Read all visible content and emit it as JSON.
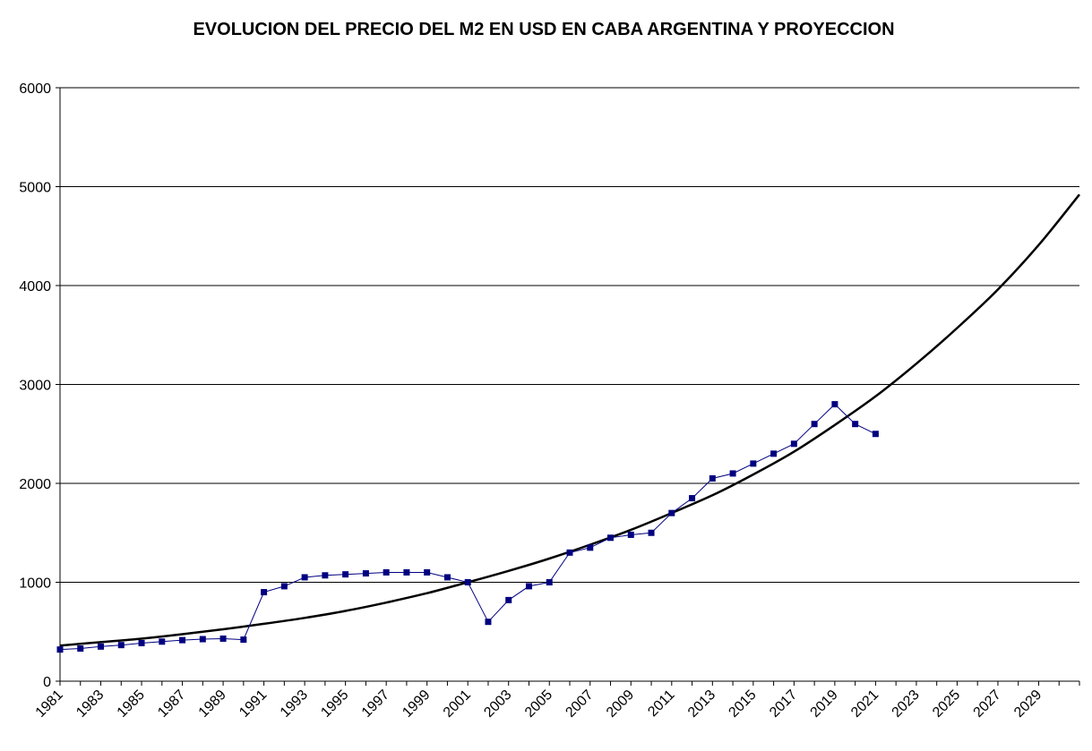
{
  "chart_data": {
    "type": "line",
    "title": "EVOLUCION DEL PRECIO DEL M2 EN USD EN CABA ARGENTINA Y PROYECCION",
    "xlabel": "",
    "ylabel": "",
    "xlim": [
      1981,
      2031
    ],
    "ylim": [
      0,
      6000
    ],
    "y_ticks": [
      "0",
      "1000",
      "2000",
      "3000",
      "4000",
      "5000",
      "6000"
    ],
    "x_ticks": [
      "1981",
      "1983",
      "1985",
      "1987",
      "1989",
      "1991",
      "1993",
      "1995",
      "1997",
      "1999",
      "2001",
      "2003",
      "2005",
      "2007",
      "2009",
      "2011",
      "2013",
      "2015",
      "2017",
      "2019",
      "2021",
      "2023",
      "2025",
      "2027",
      "2029"
    ],
    "grid": "horizontal",
    "legend": "none",
    "series": [
      {
        "style": "line-with-square-markers",
        "color": "#000080",
        "x": [
          1981,
          1982,
          1983,
          1984,
          1985,
          1986,
          1987,
          1988,
          1989,
          1990,
          1991,
          1992,
          1993,
          1994,
          1995,
          1996,
          1997,
          1998,
          1999,
          2000,
          2001,
          2002,
          2003,
          2004,
          2005,
          2006,
          2007,
          2008,
          2009,
          2010,
          2011,
          2012,
          2013,
          2014,
          2015,
          2016,
          2017,
          2018,
          2019,
          2020,
          2021
        ],
        "values": [
          320,
          330,
          350,
          365,
          385,
          400,
          415,
          425,
          430,
          420,
          900,
          960,
          1050,
          1070,
          1080,
          1090,
          1100,
          1100,
          1100,
          1050,
          1000,
          600,
          820,
          960,
          1000,
          1300,
          1350,
          1450,
          1480,
          1500,
          1700,
          1850,
          2050,
          2100,
          2200,
          2300,
          2400,
          2600,
          2800,
          2600,
          2500
        ]
      },
      {
        "style": "trend-curve",
        "color": "#000000",
        "x": [
          1981,
          1983,
          1985,
          1987,
          1989,
          1991,
          1993,
          1995,
          1997,
          1999,
          2001,
          2003,
          2005,
          2007,
          2009,
          2011,
          2013,
          2015,
          2017,
          2019,
          2021,
          2023,
          2025,
          2027,
          2029,
          2031
        ],
        "values": [
          360,
          395,
          430,
          475,
          525,
          580,
          640,
          710,
          795,
          890,
          1000,
          1115,
          1240,
          1380,
          1530,
          1700,
          1880,
          2090,
          2320,
          2590,
          2880,
          3210,
          3570,
          3960,
          4410,
          4920
        ]
      }
    ]
  }
}
